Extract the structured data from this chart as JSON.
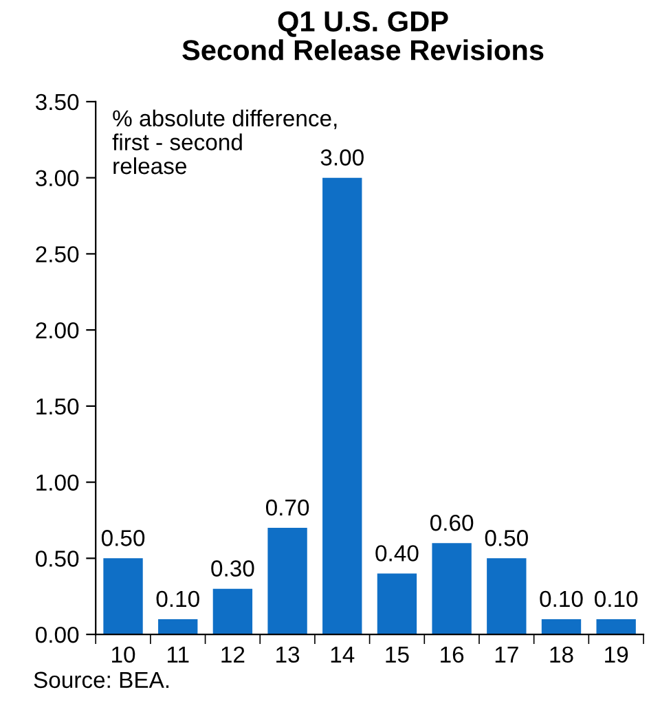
{
  "chart_data": {
    "type": "bar",
    "title": "Q1 U.S. GDP\nSecond Release Revisions",
    "categories": [
      "10",
      "11",
      "12",
      "13",
      "14",
      "15",
      "16",
      "17",
      "18",
      "19"
    ],
    "values": [
      0.5,
      0.1,
      0.3,
      0.7,
      3.0,
      0.4,
      0.6,
      0.5,
      0.1,
      0.1
    ],
    "value_labels": [
      "0.50",
      "0.10",
      "0.30",
      "0.70",
      "3.00",
      "0.40",
      "0.60",
      "0.50",
      "0.10",
      "0.10"
    ],
    "color": "#0f6fc6",
    "ylim": [
      0,
      3.5
    ],
    "yticks": [
      {
        "value": 0,
        "label": "0.00"
      },
      {
        "value": 0.5,
        "label": "0.50"
      },
      {
        "value": 1,
        "label": "1.00"
      },
      {
        "value": 1.5,
        "label": "1.50"
      },
      {
        "value": 2,
        "label": "2.00"
      },
      {
        "value": 2.5,
        "label": "2.50"
      },
      {
        "value": 3,
        "label": "3.00"
      },
      {
        "value": 3.5,
        "label": "3.50"
      }
    ],
    "grid": false,
    "annotations": [
      "% absolute difference,\nfirst - second\nrelease",
      "Source: BEA."
    ]
  }
}
